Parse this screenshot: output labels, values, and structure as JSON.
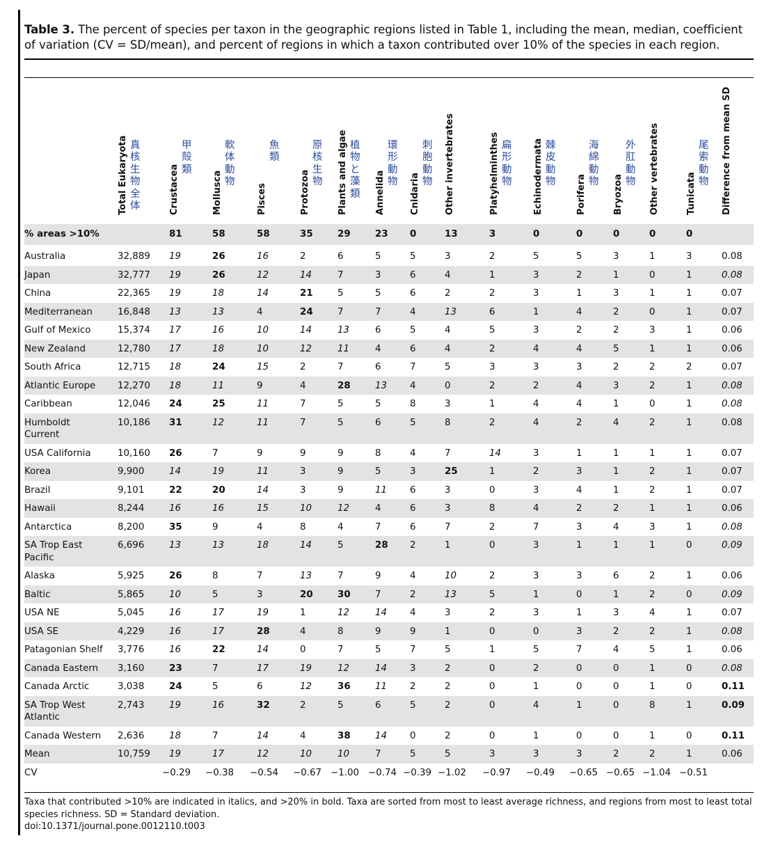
{
  "caption": {
    "label": "Table 3.",
    "text": "The percent of species per taxon in the geographic regions listed in Table 1, including the mean, median, coefficient of variation (CV = SD/mean), and percent of regions in which a taxon contributed over 10% of the species in each region."
  },
  "columns": [
    {
      "name": "Total Eukaryota",
      "kanji": [
        "真",
        "核",
        "生",
        "物",
        "全",
        "体"
      ]
    },
    {
      "name": "Crustacea",
      "kanji": [
        "甲",
        "殻",
        "類"
      ]
    },
    {
      "name": "Mollusca",
      "kanji": [
        "軟",
        "体",
        "動",
        "物"
      ]
    },
    {
      "name": "Pisces",
      "kanji": [
        "魚",
        "類"
      ]
    },
    {
      "name": "Protozoa",
      "kanji": [
        "原",
        "核",
        "生",
        "物"
      ]
    },
    {
      "name": "Plants and algae",
      "kanji": [
        "植",
        "物",
        "と",
        "藻",
        "類"
      ]
    },
    {
      "name": "Annelida",
      "kanji": [
        "環",
        "形",
        "動",
        "物"
      ]
    },
    {
      "name": "Cnidaria",
      "kanji": [
        "刺",
        "胞",
        "動",
        "物"
      ]
    },
    {
      "name": "Other invertebrates",
      "kanji": []
    },
    {
      "name": "Platyhelminthes",
      "kanji": [
        "扁",
        "形",
        "動",
        "物"
      ]
    },
    {
      "name": "Echinodermata",
      "kanji": [
        "棘",
        "皮",
        "動",
        "物"
      ]
    },
    {
      "name": "Porifera",
      "kanji": [
        "海",
        "綿",
        "動",
        "物"
      ]
    },
    {
      "name": "Bryozoa",
      "kanji": [
        "外",
        "肛",
        "動",
        "物"
      ]
    },
    {
      "name": "Other vertebrates",
      "kanji": []
    },
    {
      "name": "Tunicata",
      "kanji": [
        "尾",
        "索",
        "動",
        "物"
      ]
    },
    {
      "name": "Difference from mean SD",
      "kanji": []
    }
  ],
  "pct_row": {
    "label": "% areas >10%",
    "values": [
      "",
      "81",
      "58",
      "58",
      "35",
      "29",
      "23",
      "0",
      "13",
      "3",
      "0",
      "0",
      "0",
      "0",
      "0",
      ""
    ]
  },
  "rows": [
    {
      "region": "Australia",
      "values": [
        "32,889",
        "19",
        "26",
        "16",
        "2",
        "6",
        "5",
        "5",
        "3",
        "2",
        "5",
        "5",
        "3",
        "1",
        "3",
        "0.08"
      ],
      "styles": [
        "",
        "i",
        "b",
        "i",
        "",
        "",
        "",
        "",
        "",
        "",
        "",
        "",
        "",
        "",
        "",
        ""
      ]
    },
    {
      "region": "Japan",
      "values": [
        "32,777",
        "19",
        "26",
        "12",
        "14",
        "7",
        "3",
        "6",
        "4",
        "1",
        "3",
        "2",
        "1",
        "0",
        "1",
        "0.08"
      ],
      "styles": [
        "",
        "i",
        "b",
        "i",
        "i",
        "",
        "",
        "",
        "",
        "",
        "",
        "",
        "",
        "",
        "",
        "i"
      ]
    },
    {
      "region": "China",
      "values": [
        "22,365",
        "19",
        "18",
        "14",
        "21",
        "5",
        "5",
        "6",
        "2",
        "2",
        "3",
        "1",
        "3",
        "1",
        "1",
        "0.07"
      ],
      "styles": [
        "",
        "i",
        "i",
        "i",
        "b",
        "",
        "",
        "",
        "",
        "",
        "",
        "",
        "",
        "",
        "",
        ""
      ]
    },
    {
      "region": "Mediterranean",
      "values": [
        "16,848",
        "13",
        "13",
        "4",
        "24",
        "7",
        "7",
        "4",
        "13",
        "6",
        "1",
        "4",
        "2",
        "0",
        "1",
        "0.07"
      ],
      "styles": [
        "",
        "i",
        "i",
        "",
        "b",
        "",
        "",
        "",
        "i",
        "",
        "",
        "",
        "",
        "",
        "",
        ""
      ]
    },
    {
      "region": "Gulf of Mexico",
      "values": [
        "15,374",
        "17",
        "16",
        "10",
        "14",
        "13",
        "6",
        "5",
        "4",
        "5",
        "3",
        "2",
        "2",
        "3",
        "1",
        "0.06"
      ],
      "styles": [
        "",
        "i",
        "i",
        "i",
        "i",
        "i",
        "",
        "",
        "",
        "",
        "",
        "",
        "",
        "",
        "",
        ""
      ]
    },
    {
      "region": "New Zealand",
      "values": [
        "12,780",
        "17",
        "18",
        "10",
        "12",
        "11",
        "4",
        "6",
        "4",
        "2",
        "4",
        "4",
        "5",
        "1",
        "1",
        "0.06"
      ],
      "styles": [
        "",
        "i",
        "i",
        "i",
        "i",
        "i",
        "",
        "",
        "",
        "",
        "",
        "",
        "",
        "",
        "",
        ""
      ]
    },
    {
      "region": "South Africa",
      "values": [
        "12,715",
        "18",
        "24",
        "15",
        "2",
        "7",
        "6",
        "7",
        "5",
        "3",
        "3",
        "3",
        "2",
        "2",
        "2",
        "0.07"
      ],
      "styles": [
        "",
        "i",
        "b",
        "i",
        "",
        "",
        "",
        "",
        "",
        "",
        "",
        "",
        "",
        "",
        "",
        ""
      ]
    },
    {
      "region": "Atlantic Europe",
      "values": [
        "12,270",
        "18",
        "11",
        "9",
        "4",
        "28",
        "13",
        "4",
        "0",
        "2",
        "2",
        "4",
        "3",
        "2",
        "1",
        "0.08"
      ],
      "styles": [
        "",
        "i",
        "i",
        "",
        "",
        "b",
        "i",
        "",
        "",
        "",
        "",
        "",
        "",
        "",
        "",
        "i"
      ]
    },
    {
      "region": "Caribbean",
      "values": [
        "12,046",
        "24",
        "25",
        "11",
        "7",
        "5",
        "5",
        "8",
        "3",
        "1",
        "4",
        "4",
        "1",
        "0",
        "1",
        "0.08"
      ],
      "styles": [
        "",
        "b",
        "b",
        "i",
        "",
        "",
        "",
        "",
        "",
        "",
        "",
        "",
        "",
        "",
        "",
        "i"
      ]
    },
    {
      "region": "Humboldt Current",
      "values": [
        "10,186",
        "31",
        "12",
        "11",
        "7",
        "5",
        "6",
        "5",
        "8",
        "2",
        "4",
        "2",
        "4",
        "2",
        "1",
        "0.08"
      ],
      "styles": [
        "",
        "b",
        "i",
        "i",
        "",
        "",
        "",
        "",
        "",
        "",
        "",
        "",
        "",
        "",
        "",
        ""
      ]
    },
    {
      "region": "USA California",
      "values": [
        "10,160",
        "26",
        "7",
        "9",
        "9",
        "9",
        "8",
        "4",
        "7",
        "14",
        "3",
        "1",
        "1",
        "1",
        "1",
        "0.07"
      ],
      "styles": [
        "",
        "b",
        "",
        "",
        "",
        "",
        "",
        "",
        "",
        "i",
        "",
        "",
        "",
        "",
        "",
        ""
      ]
    },
    {
      "region": "Korea",
      "values": [
        "9,900",
        "14",
        "19",
        "11",
        "3",
        "9",
        "5",
        "3",
        "25",
        "1",
        "2",
        "3",
        "1",
        "2",
        "1",
        "0.07"
      ],
      "styles": [
        "",
        "i",
        "i",
        "i",
        "",
        "",
        "",
        "",
        "b",
        "",
        "",
        "",
        "",
        "",
        "",
        ""
      ]
    },
    {
      "region": "Brazil",
      "values": [
        "9,101",
        "22",
        "20",
        "14",
        "3",
        "9",
        "11",
        "6",
        "3",
        "0",
        "3",
        "4",
        "1",
        "2",
        "1",
        "0.07"
      ],
      "styles": [
        "",
        "b",
        "b",
        "i",
        "",
        "",
        "i",
        "",
        "",
        "",
        "",
        "",
        "",
        "",
        "",
        ""
      ]
    },
    {
      "region": "Hawaii",
      "values": [
        "8,244",
        "16",
        "16",
        "15",
        "10",
        "12",
        "4",
        "6",
        "3",
        "8",
        "4",
        "2",
        "2",
        "1",
        "1",
        "0.06"
      ],
      "styles": [
        "",
        "i",
        "i",
        "i",
        "i",
        "i",
        "",
        "",
        "",
        "",
        "",
        "",
        "",
        "",
        "",
        ""
      ]
    },
    {
      "region": "Antarctica",
      "values": [
        "8,200",
        "35",
        "9",
        "4",
        "8",
        "4",
        "7",
        "6",
        "7",
        "2",
        "7",
        "3",
        "4",
        "3",
        "1",
        "0.08"
      ],
      "styles": [
        "",
        "b",
        "",
        "",
        "",
        "",
        "",
        "",
        "",
        "",
        "",
        "",
        "",
        "",
        "",
        "i"
      ]
    },
    {
      "region": "SA Trop East Pacific",
      "values": [
        "6,696",
        "13",
        "13",
        "18",
        "14",
        "5",
        "28",
        "2",
        "1",
        "0",
        "3",
        "1",
        "1",
        "1",
        "0",
        "0.09"
      ],
      "styles": [
        "",
        "i",
        "i",
        "i",
        "i",
        "",
        "b",
        "",
        "",
        "",
        "",
        "",
        "",
        "",
        "",
        "i"
      ]
    },
    {
      "region": "Alaska",
      "values": [
        "5,925",
        "26",
        "8",
        "7",
        "13",
        "7",
        "9",
        "4",
        "10",
        "2",
        "3",
        "3",
        "6",
        "2",
        "1",
        "0.06"
      ],
      "styles": [
        "",
        "b",
        "",
        "",
        "i",
        "",
        "",
        "",
        "i",
        "",
        "",
        "",
        "",
        "",
        "",
        ""
      ]
    },
    {
      "region": "Baltic",
      "values": [
        "5,865",
        "10",
        "5",
        "3",
        "20",
        "30",
        "7",
        "2",
        "13",
        "5",
        "1",
        "0",
        "1",
        "2",
        "0",
        "0.09"
      ],
      "styles": [
        "",
        "i",
        "",
        "",
        "b",
        "b",
        "",
        "",
        "i",
        "",
        "",
        "",
        "",
        "",
        "",
        "i"
      ]
    },
    {
      "region": "USA NE",
      "values": [
        "5,045",
        "16",
        "17",
        "19",
        "1",
        "12",
        "14",
        "4",
        "3",
        "2",
        "3",
        "1",
        "3",
        "4",
        "1",
        "0.07"
      ],
      "styles": [
        "",
        "i",
        "i",
        "i",
        "",
        "i",
        "i",
        "",
        "",
        "",
        "",
        "",
        "",
        "",
        "",
        ""
      ]
    },
    {
      "region": "USA SE",
      "values": [
        "4,229",
        "16",
        "17",
        "28",
        "4",
        "8",
        "9",
        "9",
        "1",
        "0",
        "0",
        "3",
        "2",
        "2",
        "1",
        "0.08"
      ],
      "styles": [
        "",
        "i",
        "i",
        "b",
        "",
        "",
        "",
        "",
        "",
        "",
        "",
        "",
        "",
        "",
        "",
        "i"
      ]
    },
    {
      "region": "Patagonian Shelf",
      "values": [
        "3,776",
        "16",
        "22",
        "14",
        "0",
        "7",
        "5",
        "7",
        "5",
        "1",
        "5",
        "7",
        "4",
        "5",
        "1",
        "0.06"
      ],
      "styles": [
        "",
        "i",
        "b",
        "i",
        "",
        "",
        "",
        "",
        "",
        "",
        "",
        "",
        "",
        "",
        "",
        ""
      ]
    },
    {
      "region": "Canada Eastern",
      "values": [
        "3,160",
        "23",
        "7",
        "17",
        "19",
        "12",
        "14",
        "3",
        "2",
        "0",
        "2",
        "0",
        "0",
        "1",
        "0",
        "0.08"
      ],
      "styles": [
        "",
        "b",
        "",
        "i",
        "i",
        "i",
        "i",
        "",
        "",
        "",
        "",
        "",
        "",
        "",
        "",
        "i"
      ]
    },
    {
      "region": "Canada Arctic",
      "values": [
        "3,038",
        "24",
        "5",
        "6",
        "12",
        "36",
        "11",
        "2",
        "2",
        "0",
        "1",
        "0",
        "0",
        "1",
        "0",
        "0.11"
      ],
      "styles": [
        "",
        "b",
        "",
        "",
        "i",
        "b",
        "i",
        "",
        "",
        "",
        "",
        "",
        "",
        "",
        "",
        "b"
      ]
    },
    {
      "region": "SA Trop West Atlantic",
      "values": [
        "2,743",
        "19",
        "16",
        "32",
        "2",
        "5",
        "6",
        "5",
        "2",
        "0",
        "4",
        "1",
        "0",
        "8",
        "1",
        "0.09"
      ],
      "styles": [
        "",
        "i",
        "i",
        "b",
        "",
        "",
        "",
        "",
        "",
        "",
        "",
        "",
        "",
        "",
        "",
        "b"
      ]
    },
    {
      "region": "Canada Western",
      "values": [
        "2,636",
        "18",
        "7",
        "14",
        "4",
        "38",
        "14",
        "0",
        "2",
        "0",
        "1",
        "0",
        "0",
        "1",
        "0",
        "0.11"
      ],
      "styles": [
        "",
        "i",
        "",
        "i",
        "",
        "b",
        "i",
        "",
        "",
        "",
        "",
        "",
        "",
        "",
        "",
        "b"
      ]
    },
    {
      "region": "Mean",
      "values": [
        "10,759",
        "19",
        "17",
        "12",
        "10",
        "10",
        "7",
        "5",
        "5",
        "3",
        "3",
        "3",
        "2",
        "2",
        "1",
        "0.06"
      ],
      "styles": [
        "",
        "i",
        "i",
        "i",
        "i",
        "i",
        "",
        "",
        "",
        "",
        "",
        "",
        "",
        "",
        "",
        ""
      ]
    },
    {
      "region": "CV",
      "values": [
        "",
        "−0.29",
        "−0.38",
        "−0.54",
        "−0.67",
        "−1.00",
        "−0.74",
        "−0.39",
        "−1.02",
        "−0.97",
        "−0.49",
        "−0.65",
        "−0.65",
        "−1.04",
        "−0.51",
        ""
      ],
      "styles": [
        "",
        "",
        "",
        "",
        "",
        "",
        "",
        "",
        "",
        "",
        "",
        "",
        "",
        "",
        "",
        ""
      ]
    }
  ],
  "footnote": {
    "line1": "Taxa that contributed >10% are indicated in italics, and >20% in bold. Taxa are sorted from most to least average richness, and regions from most to least total species richness. SD = Standard deviation.",
    "doi": "doi:10.1371/journal.pone.0012110.t003"
  }
}
